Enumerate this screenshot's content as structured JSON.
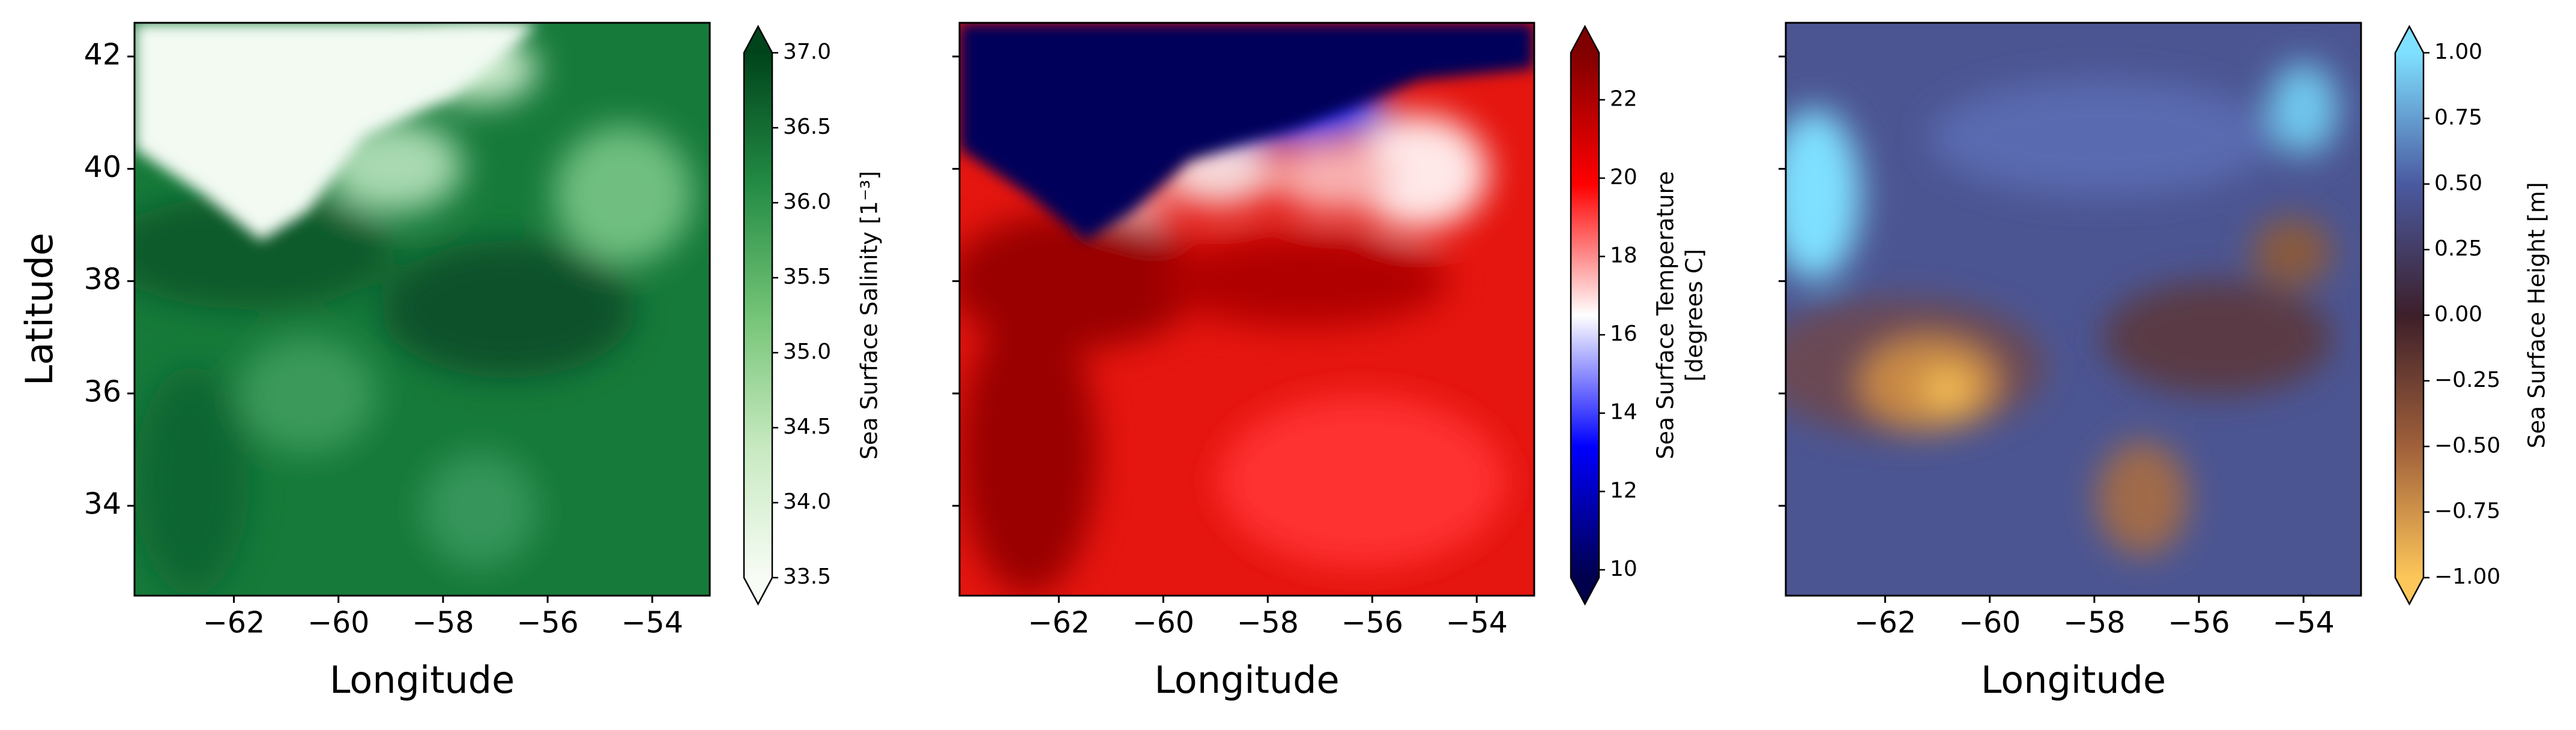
{
  "chart_data": [
    {
      "type": "heatmap",
      "xlabel": "Longitude",
      "ylabel": "Latitude",
      "xlim": [
        -63.9,
        -52.9
      ],
      "ylim": [
        32.4,
        42.6
      ],
      "xticks": [
        {
          "value": -62,
          "label": "−62"
        },
        {
          "value": -60,
          "label": "−60"
        },
        {
          "value": -58,
          "label": "−58"
        },
        {
          "value": -56,
          "label": "−56"
        },
        {
          "value": -54,
          "label": "−54"
        }
      ],
      "yticks": [
        34,
        36,
        38,
        40,
        42
      ],
      "colorbar": {
        "label": [
          "Sea Surface Salinity [1⁻³]"
        ],
        "clim": [
          33.5,
          37.0
        ],
        "extend": "both",
        "colors": [
          "#f7fcf5",
          "#c7e9c0",
          "#74c476",
          "#238b45",
          "#00441b"
        ],
        "ticks": [
          {
            "value": 33.5,
            "label": "33.5"
          },
          {
            "value": 34,
            "label": "34.0"
          },
          {
            "value": 34.5,
            "label": "34.5"
          },
          {
            "value": 35,
            "label": "35.0"
          },
          {
            "value": 35.5,
            "label": "35.5"
          },
          {
            "value": 36,
            "label": "36.0"
          },
          {
            "value": 36.5,
            "label": "36.5"
          },
          {
            "value": 37,
            "label": "37.0"
          }
        ]
      }
    },
    {
      "type": "heatmap",
      "xlabel": "Longitude",
      "sharey": true,
      "xlim": [
        -63.9,
        -52.9
      ],
      "ylim": [
        32.4,
        42.6
      ],
      "xticks": [
        {
          "value": -62,
          "label": "−62"
        },
        {
          "value": -60,
          "label": "−60"
        },
        {
          "value": -58,
          "label": "−58"
        },
        {
          "value": -56,
          "label": "−56"
        },
        {
          "value": -54,
          "label": "−54"
        }
      ],
      "colorbar": {
        "label": [
          "Sea Surface Temperature",
          "[degrees C]"
        ],
        "clim": [
          9.8,
          23.2
        ],
        "extend": "both",
        "colors": [
          "#00004c",
          "#0000ff",
          "#ffffff",
          "#ff0000",
          "#800000"
        ],
        "ticks": [
          10,
          12,
          14,
          16,
          18,
          20,
          22
        ]
      }
    },
    {
      "type": "heatmap",
      "xlabel": "Longitude",
      "sharey": true,
      "xlim": [
        -63.9,
        -52.9
      ],
      "ylim": [
        32.4,
        42.6
      ],
      "xticks": [
        {
          "value": -62,
          "label": "−62"
        },
        {
          "value": -60,
          "label": "−60"
        },
        {
          "value": -58,
          "label": "−58"
        },
        {
          "value": -56,
          "label": "−56"
        },
        {
          "value": -54,
          "label": "−54"
        }
      ],
      "colorbar": {
        "label": [
          "Sea Surface Height [m]"
        ],
        "clim": [
          -1,
          1
        ],
        "extend": "both",
        "colors": [
          "#fdc65a",
          "#a0603a",
          "#3d1f2a",
          "#4a5aa0",
          "#7fe0ff"
        ],
        "ticks": [
          {
            "value": -1,
            "label": "−1.00"
          },
          {
            "value": -0.75,
            "label": "−0.75"
          },
          {
            "value": -0.5,
            "label": "−0.50"
          },
          {
            "value": -0.25,
            "label": "−0.25"
          },
          {
            "value": 0,
            "label": "0.00"
          },
          {
            "value": 0.25,
            "label": "0.25"
          },
          {
            "value": 0.5,
            "label": "0.50"
          },
          {
            "value": 0.75,
            "label": "0.75"
          },
          {
            "value": 1,
            "label": "1.00"
          }
        ]
      }
    }
  ]
}
